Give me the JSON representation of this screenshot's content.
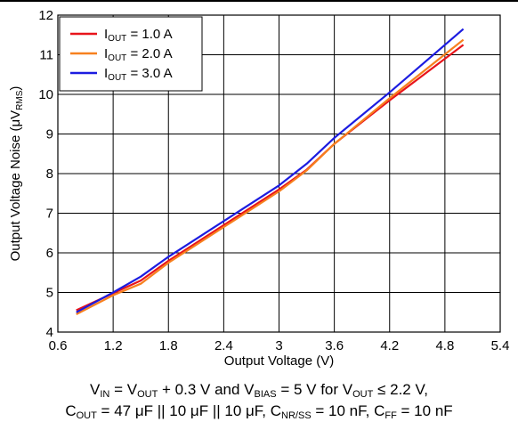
{
  "chart_data": {
    "type": "line",
    "xlabel": "Output Voltage (V)",
    "ylabel": "Output Voltage Noise (μV",
    "ylabel_sub": "RMS",
    "ylabel_close": ")",
    "xlim": [
      0.6,
      5.4
    ],
    "ylim": [
      4,
      12
    ],
    "xticks": [
      "0.6",
      "1.2",
      "1.8",
      "2.4",
      "3",
      "3.6",
      "4.2",
      "4.8",
      "5.4"
    ],
    "yticks": [
      "4",
      "5",
      "6",
      "7",
      "8",
      "9",
      "10",
      "11",
      "12"
    ],
    "grid": true,
    "legend_position": "top-left",
    "series": [
      {
        "name": "I",
        "name_sub": "OUT",
        "name_suffix": " = 1.0 A",
        "color": "#e8141b",
        "x": [
          0.8,
          1.2,
          1.5,
          1.8,
          2.5,
          3.0,
          3.3,
          3.6,
          4.2,
          5.0
        ],
        "y": [
          4.55,
          4.98,
          5.3,
          5.8,
          6.85,
          7.6,
          8.1,
          8.75,
          9.85,
          11.25
        ]
      },
      {
        "name": "I",
        "name_sub": "OUT",
        "name_suffix": " = 2.0 A",
        "color": "#f7801e",
        "x": [
          0.8,
          1.2,
          1.5,
          1.8,
          2.5,
          3.0,
          3.3,
          3.6,
          4.2,
          5.0
        ],
        "y": [
          4.45,
          4.93,
          5.22,
          5.75,
          6.8,
          7.55,
          8.08,
          8.75,
          9.9,
          11.38
        ]
      },
      {
        "name": "I",
        "name_sub": "OUT",
        "name_suffix": " = 3.0 A",
        "color": "#1c1ce0",
        "x": [
          0.8,
          1.2,
          1.5,
          1.8,
          2.5,
          3.0,
          3.3,
          3.6,
          4.2,
          5.0
        ],
        "y": [
          4.5,
          5.0,
          5.4,
          5.9,
          6.95,
          7.7,
          8.25,
          8.9,
          10.05,
          11.65
        ]
      }
    ]
  },
  "caption": {
    "line1": [
      {
        "t": "V"
      },
      {
        "s": "IN"
      },
      {
        "t": " = V"
      },
      {
        "s": "OUT"
      },
      {
        "t": " + 0.3 V and V"
      },
      {
        "s": "BIAS"
      },
      {
        "t": " = 5 V for V"
      },
      {
        "s": "OUT"
      },
      {
        "t": " ≤ 2.2 V,"
      }
    ],
    "line2": [
      {
        "t": "C"
      },
      {
        "s": "OUT"
      },
      {
        "t": " = 47 μF || 10 μF || 10 μF, C"
      },
      {
        "s": "NR/SS"
      },
      {
        "t": " = 10 nF, C"
      },
      {
        "s": "FF"
      },
      {
        "t": " = 10 nF"
      }
    ]
  }
}
